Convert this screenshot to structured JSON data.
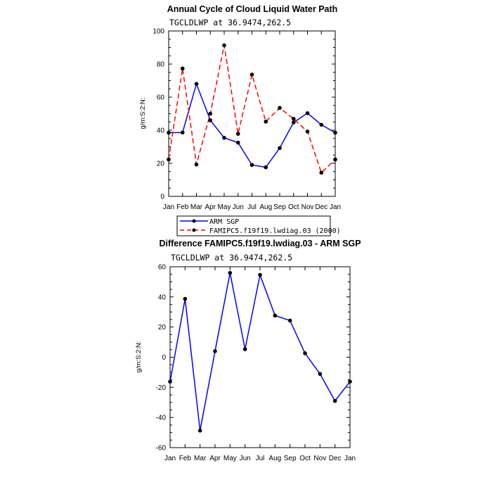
{
  "chart_data": [
    {
      "type": "line",
      "title": "Annual Cycle of Cloud Liquid Water Path",
      "subtitle": "TGCLDLWP  at 36.9474,262.5",
      "ylabel": "g/m:S:2:N:",
      "xlabel": "",
      "categories": [
        "Jan",
        "Feb",
        "Mar",
        "Apr",
        "May",
        "Jun",
        "Jul",
        "Aug",
        "Sep",
        "Oct",
        "Nov",
        "Dec",
        "Jan"
      ],
      "ylim": [
        0,
        100
      ],
      "yticks": [
        0,
        20,
        40,
        60,
        80,
        100
      ],
      "series": [
        {
          "name": "ARM SGP",
          "color": "#0000ff",
          "dash": "solid",
          "values": [
            38.5,
            38.6,
            68,
            46,
            35.4,
            32.5,
            19,
            17.6,
            29.2,
            44.7,
            50.3,
            43.3,
            38.5
          ]
        },
        {
          "name": "FAMIPC5.f19f19.lwdiag.03 (2000)",
          "color": "#ff0000",
          "dash": "dashed",
          "values": [
            22.3,
            77.3,
            19.3,
            50,
            91.3,
            37.8,
            73.6,
            45.2,
            53.5,
            46.9,
            39.2,
            14.3,
            22.3
          ]
        }
      ]
    },
    {
      "type": "line",
      "title": "Difference FAMIPC5.f19f19.lwdiag.03 - ARM SGP",
      "subtitle": "TGCLDLWP  at 36.9474,262.5",
      "ylabel": "g/m:S:2:N:",
      "xlabel": "",
      "categories": [
        "Jan",
        "Feb",
        "Mar",
        "Apr",
        "May",
        "Jun",
        "Jul",
        "Aug",
        "Sep",
        "Oct",
        "Nov",
        "Dec",
        "Jan"
      ],
      "ylim": [
        -60,
        60
      ],
      "yticks": [
        -60,
        -40,
        -20,
        0,
        20,
        40,
        60
      ],
      "series": [
        {
          "name": "Difference",
          "color": "#0000ff",
          "dash": "solid",
          "values": [
            -16.2,
            38.7,
            -48.7,
            4,
            55.9,
            5.3,
            54.6,
            27.6,
            24.3,
            2.6,
            -11.1,
            -29,
            -16.2
          ]
        }
      ]
    }
  ]
}
